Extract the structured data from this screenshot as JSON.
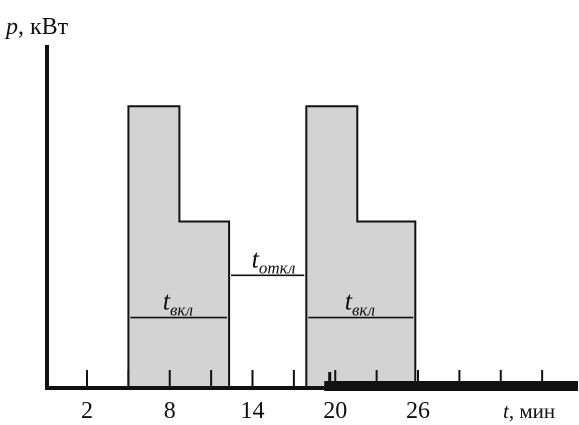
{
  "chart_data": {
    "type": "area",
    "title": "",
    "ylabel": {
      "var": "p",
      "unit": ", кВт"
    },
    "xlabel": {
      "var": "t",
      "unit": ", мин"
    },
    "x_ticks": [
      2,
      8,
      14,
      20,
      26
    ],
    "xlim": [
      -0.9,
      37.6
    ],
    "ylim": [
      0,
      2.6
    ],
    "fill_color": "#d3d3d3",
    "line_color": "#111111",
    "series": [
      {
        "points": [
          [
            5,
            0
          ],
          [
            5,
            2.2
          ],
          [
            8.7,
            2.2
          ],
          [
            8.7,
            1.3
          ],
          [
            12.3,
            1.3
          ],
          [
            12.3,
            0
          ]
        ]
      },
      {
        "points": [
          [
            17.9,
            0
          ],
          [
            17.9,
            2.2
          ],
          [
            21.6,
            2.2
          ],
          [
            21.6,
            1.3
          ],
          [
            25.8,
            1.3
          ],
          [
            25.8,
            0
          ]
        ]
      }
    ],
    "annotations": [
      {
        "name": "t-on-1",
        "main": "t",
        "sub": "вкл",
        "x_from": 5,
        "x_to": 12.3,
        "y": 0.55
      },
      {
        "name": "t-off",
        "main": "t",
        "sub": "откл",
        "x_from": 12.3,
        "x_to": 17.9,
        "y": 0.88
      },
      {
        "name": "t-on-2",
        "main": "t",
        "sub": "вкл",
        "x_from": 17.9,
        "x_to": 25.8,
        "y": 0.55
      }
    ],
    "extra_bar": {
      "x_from": 19.2,
      "x_to": 37.6
    }
  }
}
